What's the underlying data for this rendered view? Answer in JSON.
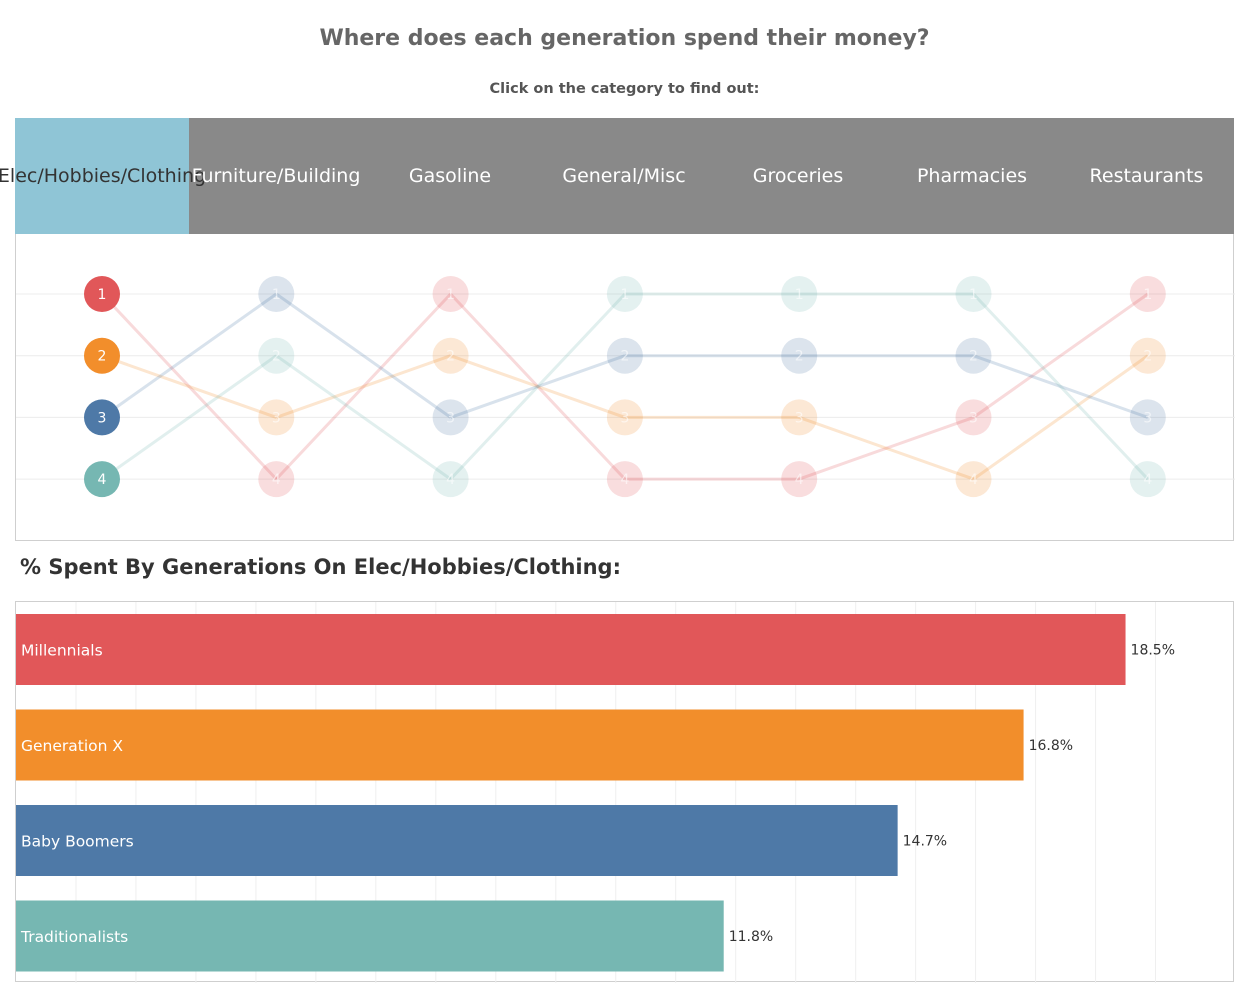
{
  "title": "Where does each generation spend their money?",
  "subtitle": "Click on the category to find out:",
  "categories": [
    "Elec/Hobbies/ Clothing",
    "Furniture/ Building",
    "Gasoline",
    "General/Misc",
    "Groceries",
    "Pharmacies",
    "Restaurants"
  ],
  "selected_category": "Elec/Hobbies/ Clothing",
  "bar_title": "% Spent By Generations On Elec/Hobbies/Clothing:",
  "colors": {
    "selected_tab": "#8fc5d6",
    "tab_bar": "#898989",
    "Millennials": "#e15759",
    "Generation X": "#f28e2b",
    "Baby Boomers": "#4e79a7",
    "Traditionalists": "#76b7b2"
  },
  "chart_data": [
    {
      "type": "line",
      "subtype": "bump",
      "categories": [
        "Elec/Hobbies/ Clothing",
        "Furniture/ Building",
        "Gasoline",
        "General/Misc",
        "Groceries",
        "Pharmacies",
        "Restaurants"
      ],
      "ylim": [
        1,
        4
      ],
      "y_reversed": true,
      "series": [
        {
          "color": "#e15759",
          "values": [
            1,
            4,
            1,
            4,
            4,
            3,
            1
          ]
        },
        {
          "color": "#f28e2b",
          "values": [
            2,
            3,
            2,
            3,
            3,
            4,
            2
          ]
        },
        {
          "color": "#4e79a7",
          "values": [
            3,
            1,
            3,
            2,
            2,
            2,
            3
          ]
        },
        {
          "color": "#76b7b2",
          "values": [
            4,
            2,
            4,
            1,
            1,
            1,
            4
          ]
        }
      ],
      "highlighted_category": "Elec/Hobbies/ Clothing",
      "grid": true
    },
    {
      "type": "bar",
      "orientation": "horizontal",
      "title": "% Spent By Generations On Elec/Hobbies/Clothing:",
      "categories": [
        "Millennials",
        "Generation X",
        "Baby Boomers",
        "Traditionalists"
      ],
      "values": [
        18.5,
        16.8,
        14.7,
        11.8
      ],
      "value_labels": [
        "18.5%",
        "16.8%",
        "14.7%",
        "11.8%"
      ],
      "xlim": [
        0,
        20
      ],
      "grid": true
    }
  ]
}
